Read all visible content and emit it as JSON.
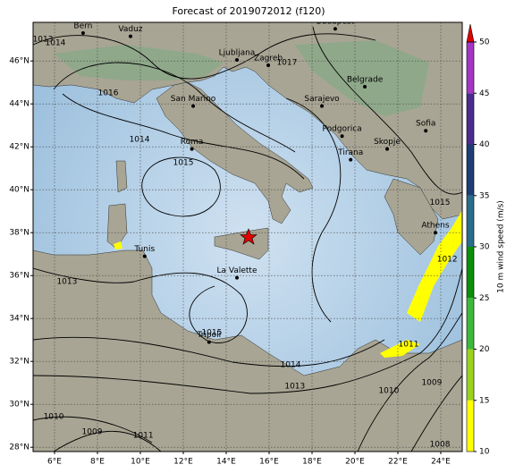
{
  "title": "Forecast of 2019072012 (f120)",
  "map": {
    "lonlim": [
      5,
      25
    ],
    "latlim": [
      27.8,
      47.8
    ],
    "lon_ticks": [
      {
        "value": 6,
        "label": "6°E"
      },
      {
        "value": 8,
        "label": "8°E"
      },
      {
        "value": 10,
        "label": "10°E"
      },
      {
        "value": 12,
        "label": "12°E"
      },
      {
        "value": 14,
        "label": "14°E"
      },
      {
        "value": 16,
        "label": "16°E"
      },
      {
        "value": 18,
        "label": "18°E"
      },
      {
        "value": 20,
        "label": "20°E"
      },
      {
        "value": 22,
        "label": "22°E"
      },
      {
        "value": 24,
        "label": "24°E"
      }
    ],
    "lat_ticks": [
      {
        "value": 28,
        "label": "28°N"
      },
      {
        "value": 30,
        "label": "30°N"
      },
      {
        "value": 32,
        "label": "32°N"
      },
      {
        "value": 34,
        "label": "34°N"
      },
      {
        "value": 36,
        "label": "36°N"
      },
      {
        "value": 38,
        "label": "38°N"
      },
      {
        "value": 40,
        "label": "40°N"
      },
      {
        "value": 42,
        "label": "42°N"
      },
      {
        "value": 44,
        "label": "44°N"
      },
      {
        "value": 46,
        "label": "46°N"
      }
    ],
    "grid": true,
    "cities": [
      {
        "name": "Bern",
        "lon": 7.33,
        "lat": 47.3
      },
      {
        "name": "Vaduz",
        "lon": 9.54,
        "lat": 47.15
      },
      {
        "name": "Budapest",
        "lon": 19.08,
        "lat": 47.5
      },
      {
        "name": "Ljubljana",
        "lon": 14.5,
        "lat": 46.05
      },
      {
        "name": "Zagreb",
        "lon": 15.96,
        "lat": 45.8
      },
      {
        "name": "San Marino",
        "lon": 12.46,
        "lat": 43.9
      },
      {
        "name": "Belgrade",
        "lon": 20.46,
        "lat": 44.8
      },
      {
        "name": "Sarajevo",
        "lon": 18.46,
        "lat": 43.9
      },
      {
        "name": "Roma",
        "lon": 12.4,
        "lat": 41.9
      },
      {
        "name": "Podgorica",
        "lon": 19.4,
        "lat": 42.5
      },
      {
        "name": "Skopje",
        "lon": 21.5,
        "lat": 41.9
      },
      {
        "name": "Sofia",
        "lon": 23.3,
        "lat": 42.75
      },
      {
        "name": "Tirana",
        "lon": 19.8,
        "lat": 41.4
      },
      {
        "name": "Athens",
        "lon": 23.75,
        "lat": 38.0
      },
      {
        "name": "Tunis",
        "lon": 10.2,
        "lat": 36.9
      },
      {
        "name": "La Valette",
        "lon": 14.5,
        "lat": 35.9
      },
      {
        "name": "Tripoli",
        "lon": 13.2,
        "lat": 32.9
      }
    ],
    "isobar_labels": [
      {
        "label": "1013",
        "lon": 5.46,
        "lat": 47.0
      },
      {
        "label": "1014",
        "lon": 6.04,
        "lat": 46.84
      },
      {
        "label": "1016",
        "lon": 8.5,
        "lat": 44.5
      },
      {
        "label": "1014",
        "lon": 9.96,
        "lat": 42.35
      },
      {
        "label": "1015",
        "lon": 12.0,
        "lat": 41.26
      },
      {
        "label": "1017",
        "lon": 16.83,
        "lat": 45.93
      },
      {
        "label": "1013",
        "lon": 6.58,
        "lat": 35.72
      },
      {
        "label": "1015",
        "lon": 13.33,
        "lat": 33.34
      },
      {
        "label": "1014",
        "lon": 17.0,
        "lat": 31.84
      },
      {
        "label": "1013",
        "lon": 17.2,
        "lat": 30.84
      },
      {
        "label": "1010",
        "lon": 5.96,
        "lat": 29.43
      },
      {
        "label": "1009",
        "lon": 7.75,
        "lat": 28.72
      },
      {
        "label": "1011",
        "lon": 10.13,
        "lat": 28.55
      },
      {
        "label": "1010",
        "lon": 21.58,
        "lat": 30.63
      },
      {
        "label": "1011",
        "lon": 22.5,
        "lat": 32.8
      },
      {
        "label": "1009",
        "lon": 23.58,
        "lat": 31.0
      },
      {
        "label": "1012",
        "lon": 24.3,
        "lat": 36.76
      },
      {
        "label": "1015",
        "lon": 23.96,
        "lat": 39.4
      },
      {
        "label": "1008",
        "lon": 23.96,
        "lat": 28.13
      }
    ]
  },
  "colorbar": {
    "label": "10 m wind speed (m/s)",
    "lim": [
      10,
      50
    ],
    "ticks": [
      10,
      15,
      20,
      25,
      30,
      35,
      40,
      45,
      50
    ],
    "colors": [
      "#ffff00",
      "#9ad31c",
      "#3cb83c",
      "#0a8f0a",
      "#2a6c8c",
      "#1d3d74",
      "#4b2c8e",
      "#a535c4"
    ],
    "extend_color": "#e00000"
  }
}
